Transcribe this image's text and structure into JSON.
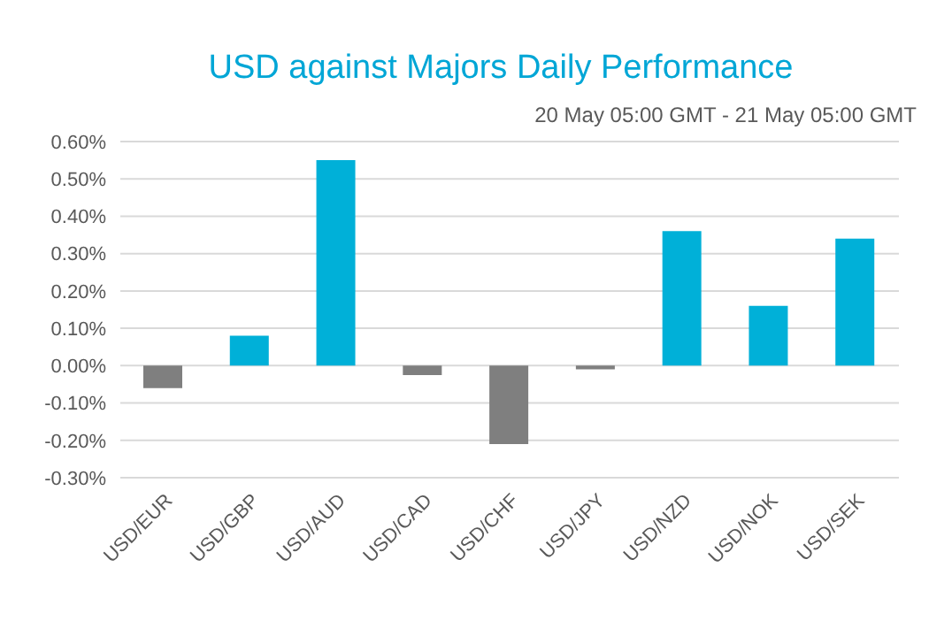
{
  "chart_data": {
    "type": "bar",
    "title": "USD against Majors Daily Performance",
    "subtitle": "20 May 05:00 GMT - 21 May 05:00 GMT",
    "categories": [
      "USD/EUR",
      "USD/GBP",
      "USD/AUD",
      "USD/CAD",
      "USD/CHF",
      "USD/JPY",
      "USD/NZD",
      "USD/NOK",
      "USD/SEK"
    ],
    "values": [
      -0.06,
      0.08,
      0.55,
      -0.025,
      -0.21,
      -0.01,
      0.36,
      0.16,
      0.34
    ],
    "colors": [
      "#7f7f7f",
      "#00b0d8",
      "#00b0d8",
      "#7f7f7f",
      "#7f7f7f",
      "#7f7f7f",
      "#00b0d8",
      "#00b0d8",
      "#00b0d8"
    ],
    "ylim": [
      -0.3,
      0.6
    ],
    "yticks": [
      {
        "value": -0.3,
        "label": "-0.30%"
      },
      {
        "value": -0.2,
        "label": "-0.20%"
      },
      {
        "value": -0.1,
        "label": "-0.10%"
      },
      {
        "value": 0,
        "label": "0.00%"
      },
      {
        "value": 0.1,
        "label": "0.10%"
      },
      {
        "value": 0.2,
        "label": "0.20%"
      },
      {
        "value": 0.3,
        "label": "0.30%"
      },
      {
        "value": 0.4,
        "label": "0.40%"
      },
      {
        "value": 0.5,
        "label": "0.50%"
      },
      {
        "value": 0.6,
        "label": "0.60%"
      }
    ],
    "grid": "y",
    "legend": false
  }
}
